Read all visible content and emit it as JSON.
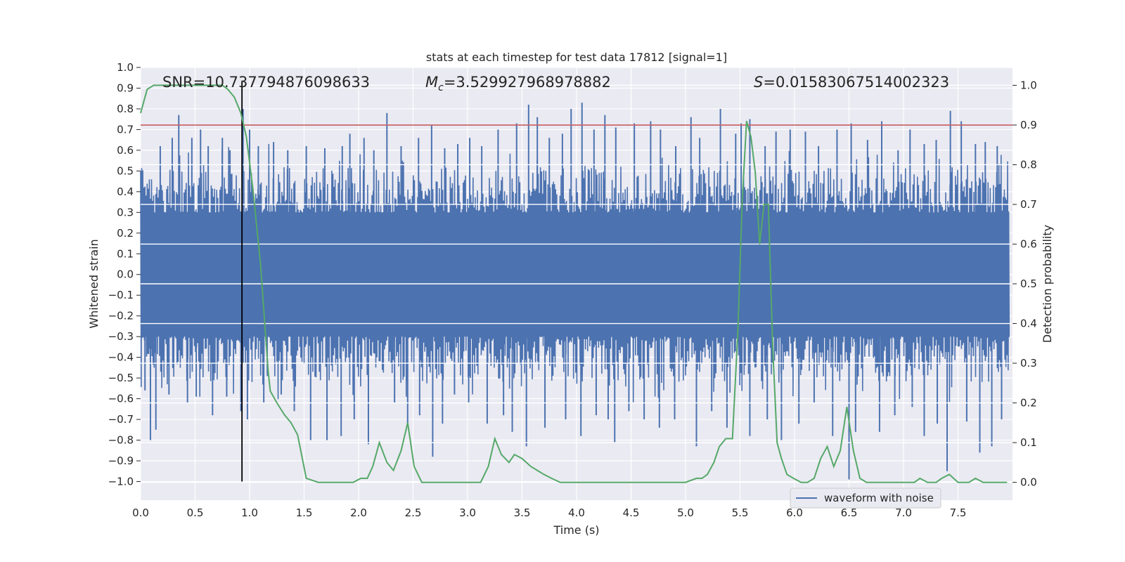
{
  "chart_data": {
    "type": "line",
    "title": "stats at each timestep for test data 17812 [signal=1]",
    "xlabel": "Time (s)",
    "ylabel": "Whitened strain",
    "y2label": "Detection probability",
    "xlim": [
      0.0,
      8.0
    ],
    "ylim": [
      -1.09,
      1.0
    ],
    "y2lim": [
      -0.045,
      1.045
    ],
    "x_ticks": [
      "0.0",
      "0.5",
      "1.0",
      "1.5",
      "2.0",
      "2.5",
      "3.0",
      "3.5",
      "4.0",
      "4.5",
      "5.0",
      "5.5",
      "6.0",
      "6.5",
      "7.0",
      "7.5"
    ],
    "y_ticks": [
      "1.0",
      "0.9",
      "0.8",
      "0.7",
      "0.6",
      "0.5",
      "0.4",
      "0.3",
      "0.2",
      "0.1",
      "0.0",
      "−0.1",
      "−0.2",
      "−0.3",
      "−0.4",
      "−0.5",
      "−0.6",
      "−0.7",
      "−0.8",
      "−0.9",
      "−1.0"
    ],
    "y2_ticks": [
      "1.0",
      "0.9",
      "0.8",
      "0.7",
      "0.6",
      "0.5",
      "0.4",
      "0.3",
      "0.2",
      "0.1",
      "0.0"
    ],
    "annotations": {
      "snr": "SNR=10.737794876098633",
      "mc_symbol": "M",
      "mc_sub": "c",
      "mc_value": "=3.529927968978882",
      "s_symbol": "S",
      "s_value": "=0.01583067514002323"
    },
    "legend": {
      "label": "waveform with noise",
      "location": "bottom-right"
    },
    "threshold": {
      "value": 0.9,
      "axis": "y2",
      "color": "#c44e52"
    },
    "marker_line": {
      "x": 0.93,
      "y_start": -1.0,
      "y_end": 0.93,
      "color": "#000000"
    },
    "waveform": {
      "name": "waveform with noise",
      "color": "#4c72b0",
      "x_start": 0.0,
      "x_end": 7.97,
      "samples": 1600,
      "peaks_up": [
        [
          0.18,
          0.62
        ],
        [
          0.29,
          0.66
        ],
        [
          0.35,
          0.77
        ],
        [
          0.47,
          0.66
        ],
        [
          0.55,
          0.7
        ],
        [
          0.62,
          0.62
        ],
        [
          0.75,
          0.66
        ],
        [
          0.82,
          0.6
        ],
        [
          0.94,
          0.8
        ],
        [
          1.0,
          0.7
        ],
        [
          1.08,
          0.62
        ],
        [
          1.22,
          0.64
        ],
        [
          1.35,
          0.6
        ],
        [
          1.52,
          0.62
        ],
        [
          1.69,
          0.61
        ],
        [
          1.85,
          0.62
        ],
        [
          1.92,
          0.68
        ],
        [
          2.05,
          0.66
        ],
        [
          2.14,
          0.6
        ],
        [
          2.26,
          0.78
        ],
        [
          2.39,
          0.62
        ],
        [
          2.55,
          0.66
        ],
        [
          2.67,
          0.72
        ],
        [
          2.79,
          0.61
        ],
        [
          2.91,
          0.63
        ],
        [
          3.02,
          0.66
        ],
        [
          3.13,
          0.62
        ],
        [
          3.28,
          0.7
        ],
        [
          3.45,
          0.73
        ],
        [
          3.56,
          0.82
        ],
        [
          3.64,
          0.76
        ],
        [
          3.75,
          0.66
        ],
        [
          3.87,
          0.68
        ],
        [
          3.95,
          0.8
        ],
        [
          4.05,
          0.83
        ],
        [
          4.16,
          0.7
        ],
        [
          4.26,
          0.77
        ],
        [
          4.36,
          0.71
        ],
        [
          4.53,
          0.73
        ],
        [
          4.68,
          0.74
        ],
        [
          4.77,
          0.7
        ],
        [
          4.91,
          0.62
        ],
        [
          5.05,
          0.76
        ],
        [
          5.13,
          0.66
        ],
        [
          5.32,
          0.8
        ],
        [
          5.46,
          0.68
        ],
        [
          5.51,
          0.73
        ],
        [
          5.59,
          0.75
        ],
        [
          5.73,
          0.62
        ],
        [
          5.83,
          0.69
        ],
        [
          5.96,
          0.7
        ],
        [
          6.1,
          0.69
        ],
        [
          6.22,
          0.62
        ],
        [
          6.39,
          0.7
        ],
        [
          6.52,
          0.73
        ],
        [
          6.67,
          0.65
        ],
        [
          6.8,
          0.74
        ],
        [
          6.95,
          0.6
        ],
        [
          7.06,
          0.7
        ],
        [
          7.19,
          0.63
        ],
        [
          7.3,
          0.65
        ],
        [
          7.43,
          0.79
        ],
        [
          7.53,
          0.74
        ],
        [
          7.66,
          0.63
        ],
        [
          7.75,
          0.64
        ],
        [
          7.86,
          0.62
        ]
      ],
      "peaks_down": [
        [
          0.04,
          -0.56
        ],
        [
          0.09,
          -0.8
        ],
        [
          0.14,
          -0.75
        ],
        [
          0.26,
          -0.58
        ],
        [
          0.43,
          -0.62
        ],
        [
          0.51,
          -0.59
        ],
        [
          0.66,
          -0.68
        ],
        [
          0.79,
          -0.59
        ],
        [
          0.92,
          -0.66
        ],
        [
          0.98,
          -0.7
        ],
        [
          1.13,
          -0.62
        ],
        [
          1.29,
          -0.58
        ],
        [
          1.41,
          -0.66
        ],
        [
          1.56,
          -0.8
        ],
        [
          1.71,
          -0.8
        ],
        [
          1.84,
          -0.78
        ],
        [
          1.96,
          -0.7
        ],
        [
          2.09,
          -0.82
        ],
        [
          2.33,
          -0.62
        ],
        [
          2.45,
          -0.72
        ],
        [
          2.56,
          -0.68
        ],
        [
          2.68,
          -0.88
        ],
        [
          2.77,
          -0.72
        ],
        [
          2.88,
          -0.58
        ],
        [
          3.01,
          -0.62
        ],
        [
          3.18,
          -0.72
        ],
        [
          3.33,
          -0.68
        ],
        [
          3.41,
          -0.76
        ],
        [
          3.54,
          -0.83
        ],
        [
          3.71,
          -0.74
        ],
        [
          3.9,
          -0.7
        ],
        [
          4.04,
          -0.78
        ],
        [
          4.18,
          -0.68
        ],
        [
          4.29,
          -0.7
        ],
        [
          4.35,
          -0.81
        ],
        [
          4.48,
          -0.66
        ],
        [
          4.62,
          -0.7
        ],
        [
          4.76,
          -0.74
        ],
        [
          4.9,
          -0.7
        ],
        [
          5.1,
          -0.83
        ],
        [
          5.24,
          -0.66
        ],
        [
          5.38,
          -0.74
        ],
        [
          5.59,
          -0.78
        ],
        [
          5.75,
          -0.7
        ],
        [
          5.88,
          -0.8
        ],
        [
          6.04,
          -0.72
        ],
        [
          6.18,
          -0.62
        ],
        [
          6.35,
          -0.78
        ],
        [
          6.5,
          -0.99
        ],
        [
          6.56,
          -0.76
        ],
        [
          6.78,
          -0.76
        ],
        [
          6.92,
          -0.68
        ],
        [
          7.08,
          -0.64
        ],
        [
          7.19,
          -0.78
        ],
        [
          7.31,
          -0.72
        ],
        [
          7.4,
          -0.95
        ],
        [
          7.58,
          -0.71
        ],
        [
          7.7,
          -0.86
        ],
        [
          7.81,
          -0.83
        ],
        [
          7.9,
          -0.7
        ]
      ]
    },
    "probability": {
      "name": "Detection probability",
      "color": "#55a868",
      "x": [
        0.0,
        0.06,
        0.12,
        0.18,
        0.25,
        0.35,
        0.5,
        0.65,
        0.75,
        0.8,
        0.86,
        0.92,
        0.97,
        1.03,
        1.1,
        1.17,
        1.19,
        1.25,
        1.32,
        1.38,
        1.44,
        1.52,
        1.63,
        1.74,
        1.82,
        1.88,
        1.95,
        2.02,
        2.08,
        2.13,
        2.19,
        2.26,
        2.32,
        2.39,
        2.45,
        2.51,
        2.58,
        2.66,
        2.75,
        2.85,
        2.98,
        3.08,
        3.12,
        3.19,
        3.25,
        3.31,
        3.38,
        3.43,
        3.5,
        3.58,
        3.64,
        3.7,
        3.77,
        3.85,
        3.95,
        4.1,
        4.3,
        4.5,
        4.7,
        4.9,
        5.0,
        5.1,
        5.15,
        5.2,
        5.26,
        5.31,
        5.37,
        5.43,
        5.48,
        5.52,
        5.56,
        5.6,
        5.64,
        5.68,
        5.72,
        5.76,
        5.8,
        5.84,
        5.88,
        5.93,
        5.99,
        6.06,
        6.12,
        6.18,
        6.24,
        6.3,
        6.36,
        6.42,
        6.48,
        6.54,
        6.6,
        6.66,
        6.72,
        6.8,
        7.0,
        7.1,
        7.15,
        7.22,
        7.3,
        7.35,
        7.42,
        7.5,
        7.55,
        7.6,
        7.66,
        7.73,
        7.8,
        7.87,
        7.95
      ],
      "y": [
        0.93,
        0.99,
        1.0,
        1.0,
        1.0,
        1.0,
        1.0,
        1.0,
        1.0,
        0.99,
        0.97,
        0.93,
        0.87,
        0.74,
        0.55,
        0.28,
        0.23,
        0.2,
        0.17,
        0.15,
        0.12,
        0.01,
        0.0,
        0.0,
        0.0,
        0.0,
        0.0,
        0.01,
        0.01,
        0.04,
        0.1,
        0.05,
        0.03,
        0.08,
        0.15,
        0.04,
        0.0,
        0.0,
        0.0,
        0.0,
        0.0,
        0.0,
        0.0,
        0.04,
        0.11,
        0.07,
        0.05,
        0.07,
        0.06,
        0.04,
        0.03,
        0.02,
        0.01,
        0.0,
        0.0,
        0.0,
        0.0,
        0.0,
        0.0,
        0.0,
        0.0,
        0.01,
        0.01,
        0.02,
        0.05,
        0.09,
        0.11,
        0.11,
        0.38,
        0.71,
        0.91,
        0.87,
        0.78,
        0.6,
        0.7,
        0.7,
        0.34,
        0.1,
        0.06,
        0.02,
        0.01,
        0.0,
        0.0,
        0.01,
        0.06,
        0.09,
        0.04,
        0.08,
        0.19,
        0.08,
        0.01,
        0.0,
        0.0,
        0.0,
        0.0,
        0.0,
        0.01,
        0.0,
        0.0,
        0.01,
        0.02,
        0.0,
        0.0,
        0.0,
        0.01,
        0.0,
        0.0,
        0.0,
        0.0
      ]
    }
  }
}
